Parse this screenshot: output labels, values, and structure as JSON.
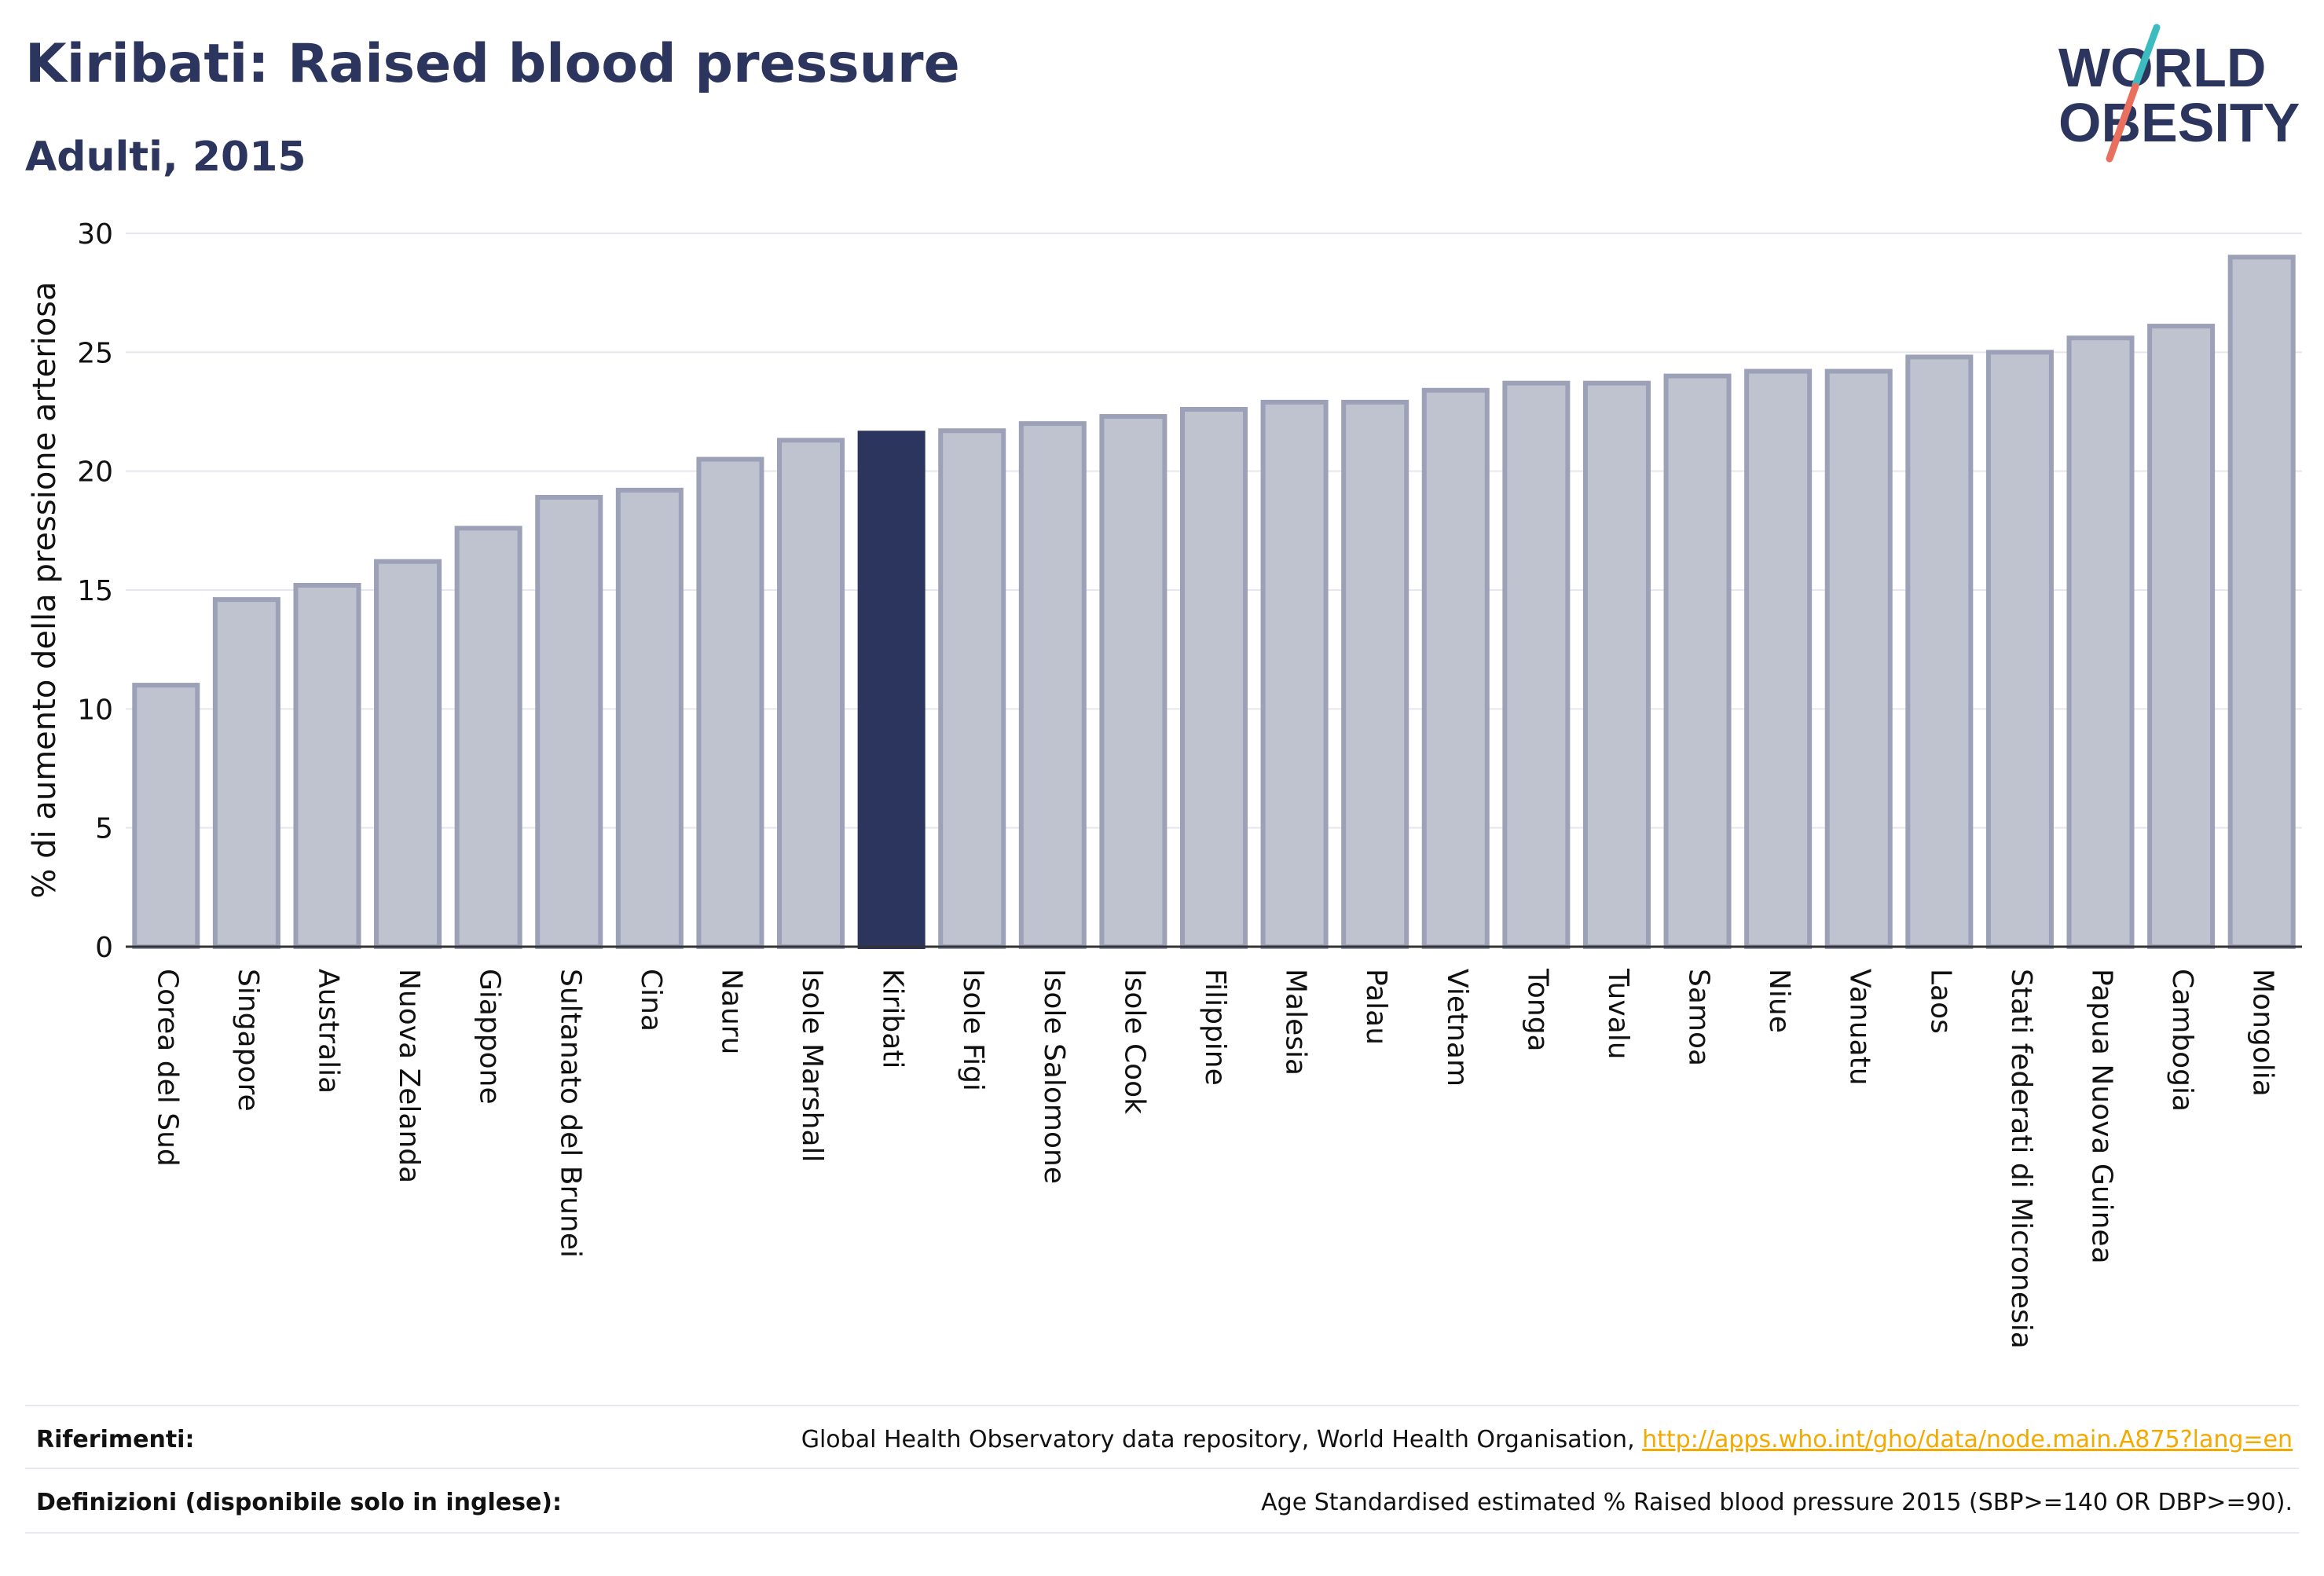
{
  "header": {
    "title": "Kiribati: Raised blood pressure",
    "subtitle": "Adulti, 2015"
  },
  "logo": {
    "line1": "WORLD",
    "line2": "OBESITY"
  },
  "colors": {
    "highlight": "#2b355e",
    "bar": "#bfc2cf",
    "bar_outline": "#9ca1b8",
    "axis_text": "#111111",
    "link": "#f2a900",
    "logo_teal": "#3dbcc0",
    "logo_coral": "#e9705e"
  },
  "chart_data": {
    "type": "bar",
    "ylabel": "% di aumento della pressione arteriosa",
    "ylim": [
      0,
      30
    ],
    "yticks": [
      0,
      5,
      10,
      15,
      20,
      25,
      30
    ],
    "grid": true,
    "highlight": "Kiribati",
    "categories": [
      "Corea del Sud",
      "Singapore",
      "Australia",
      "Nuova Zelanda",
      "Giappone",
      "Sultanato del Brunei",
      "Cina",
      "Nauru",
      "Isole Marshall",
      "Kiribati",
      "Isole Figi",
      "Isole Salomone",
      "Isole Cook",
      "Filippine",
      "Malesia",
      "Palau",
      "Vietnam",
      "Tonga",
      "Tuvalu",
      "Samoa",
      "Niue",
      "Vanuatu",
      "Laos",
      "Stati federati di Micronesia",
      "Papua Nuova Guinea",
      "Cambogia",
      "Mongolia"
    ],
    "values": [
      11.0,
      14.6,
      15.2,
      16.2,
      17.6,
      18.9,
      19.2,
      20.5,
      21.3,
      21.6,
      21.7,
      22.0,
      22.3,
      22.6,
      22.9,
      22.9,
      23.4,
      23.7,
      23.7,
      24.0,
      24.2,
      24.2,
      24.8,
      25.0,
      25.6,
      26.1,
      29.0
    ]
  },
  "footer": {
    "references_label": "Riferimenti:",
    "references_text": "Global Health Observatory data repository, World Health Organisation, ",
    "references_link": "http://apps.who.int/gho/data/node.main.A875?lang=en",
    "definitions_label": "Definizioni (disponibile solo in inglese):",
    "definitions_text": "Age Standardised estimated % Raised blood pressure 2015 (SBP>=140 OR DBP>=90)."
  }
}
